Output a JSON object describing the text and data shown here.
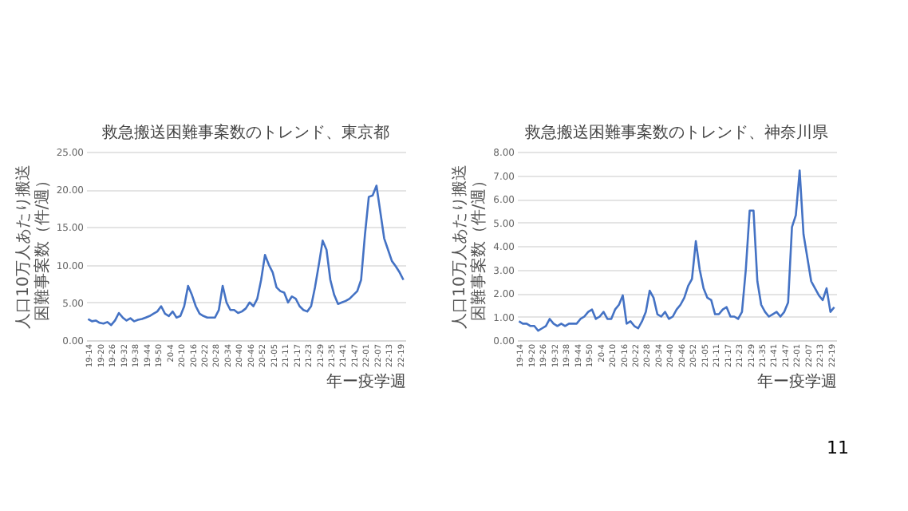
{
  "chart_data": [
    {
      "type": "line",
      "title": "救急搬送困難事案数のトレンド、東京都",
      "xlabel": "年ー疫学週",
      "ylabel": "人口10万人あたり搬送困難事案数（件/週）",
      "categories": [
        "19-14",
        null,
        null,
        "19-20",
        null,
        null,
        "19-26",
        null,
        null,
        "19-32",
        null,
        null,
        "19-38",
        null,
        null,
        "19-44",
        null,
        null,
        "19-50",
        null,
        null,
        "20-4",
        null,
        null,
        "20-10",
        null,
        null,
        "20-16",
        null,
        null,
        "20-22",
        null,
        null,
        "20-28",
        null,
        null,
        "20-34",
        null,
        null,
        "20-40",
        null,
        null,
        "20-46",
        null,
        null,
        "20-52",
        null,
        null,
        "21-05",
        null,
        null,
        "21-11",
        null,
        null,
        "21-17",
        null,
        null,
        "21-23",
        null,
        null,
        "21-29",
        null,
        null,
        "21-35",
        null,
        null,
        "21-41",
        null,
        null,
        "21-47",
        null,
        null,
        "22-01",
        null,
        null,
        "22-07",
        null,
        null,
        "22-13",
        null,
        null,
        "22-19",
        null
      ],
      "series": [
        {
          "color": "#4472c4",
          "values": [
            2.8,
            2.5,
            2.6,
            2.3,
            2.2,
            2.4,
            2.0,
            2.6,
            3.6,
            3.0,
            2.6,
            2.9,
            2.5,
            2.7,
            2.8,
            3.0,
            3.2,
            3.5,
            3.8,
            4.5,
            3.5,
            3.2,
            3.8,
            3.0,
            3.2,
            4.5,
            7.2,
            6.0,
            4.5,
            3.5,
            3.2,
            3.0,
            3.0,
            3.0,
            4.0,
            7.2,
            5.0,
            4.0,
            4.0,
            3.6,
            3.8,
            4.2,
            5.0,
            4.5,
            5.5,
            8.0,
            11.3,
            10.0,
            9.0,
            7.0,
            6.5,
            6.3,
            5.0,
            5.8,
            5.5,
            4.5,
            4.0,
            3.8,
            4.5,
            7.0,
            10.0,
            13.2,
            12.0,
            8.0,
            6.0,
            4.8,
            5.0,
            5.2,
            5.5,
            6.0,
            6.5,
            8.0,
            14.0,
            19.0,
            19.2,
            20.5,
            17.0,
            13.5,
            12.0,
            10.5,
            9.8,
            9.0,
            8.0
          ]
        }
      ],
      "ylim": [
        0,
        25
      ],
      "yticks": [
        {
          "value": 0,
          "label": "0.00"
        },
        {
          "value": 5,
          "label": "5.00"
        },
        {
          "value": 10,
          "label": "10.00"
        },
        {
          "value": 15,
          "label": "15.00"
        },
        {
          "value": 20,
          "label": "20.00"
        },
        {
          "value": 25,
          "label": "25.00"
        }
      ],
      "grid": "y"
    },
    {
      "type": "line",
      "title": "救急搬送困難事案数のトレンド、神奈川県",
      "xlabel": "年ー疫学週",
      "ylabel": "人口10万人あたり搬送困難事案数（件/週）",
      "categories": [
        "19-14",
        null,
        null,
        "19-20",
        null,
        null,
        "19-26",
        null,
        null,
        "19-32",
        null,
        null,
        "19-38",
        null,
        null,
        "19-44",
        null,
        null,
        "19-50",
        null,
        null,
        "20-4",
        null,
        null,
        "20-10",
        null,
        null,
        "20-16",
        null,
        null,
        "20-22",
        null,
        null,
        "20-28",
        null,
        null,
        "20-34",
        null,
        null,
        "20-40",
        null,
        null,
        "20-46",
        null,
        null,
        "20-52",
        null,
        null,
        "21-05",
        null,
        null,
        "21-11",
        null,
        null,
        "21-17",
        null,
        null,
        "21-23",
        null,
        null,
        "21-29",
        null,
        null,
        "21-35",
        null,
        null,
        "21-41",
        null,
        null,
        "21-47",
        null,
        null,
        "22-01",
        null,
        null,
        "22-07",
        null,
        null,
        "22-13",
        null,
        null,
        "22-19",
        null
      ],
      "series": [
        {
          "color": "#4472c4",
          "values": [
            0.8,
            0.7,
            0.7,
            0.6,
            0.6,
            0.4,
            0.5,
            0.6,
            0.9,
            0.7,
            0.6,
            0.7,
            0.6,
            0.7,
            0.7,
            0.7,
            0.9,
            1.0,
            1.2,
            1.3,
            0.9,
            1.0,
            1.2,
            0.9,
            0.9,
            1.3,
            1.5,
            1.9,
            0.7,
            0.8,
            0.6,
            0.5,
            0.8,
            1.2,
            2.1,
            1.8,
            1.1,
            1.0,
            1.2,
            0.9,
            1.0,
            1.3,
            1.5,
            1.8,
            2.3,
            2.6,
            4.2,
            3.0,
            2.2,
            1.8,
            1.7,
            1.1,
            1.1,
            1.3,
            1.4,
            1.0,
            1.0,
            0.9,
            1.2,
            3.0,
            5.5,
            5.5,
            2.5,
            1.5,
            1.2,
            1.0,
            1.1,
            1.2,
            1.0,
            1.2,
            1.6,
            4.8,
            5.3,
            7.2,
            4.5,
            3.5,
            2.5,
            2.2,
            1.9,
            1.7,
            2.2,
            1.2,
            1.4
          ]
        }
      ],
      "ylim": [
        0,
        8
      ],
      "yticks": [
        {
          "value": 0,
          "label": "0.00"
        },
        {
          "value": 1,
          "label": "1.00"
        },
        {
          "value": 2,
          "label": "2.00"
        },
        {
          "value": 3,
          "label": "3.00"
        },
        {
          "value": 4,
          "label": "4.00"
        },
        {
          "value": 5,
          "label": "5.00"
        },
        {
          "value": 6,
          "label": "6.00"
        },
        {
          "value": 7,
          "label": "7.00"
        },
        {
          "value": 8,
          "label": "8.00"
        }
      ],
      "grid": "y",
      "annotations": [
        "11"
      ]
    }
  ]
}
